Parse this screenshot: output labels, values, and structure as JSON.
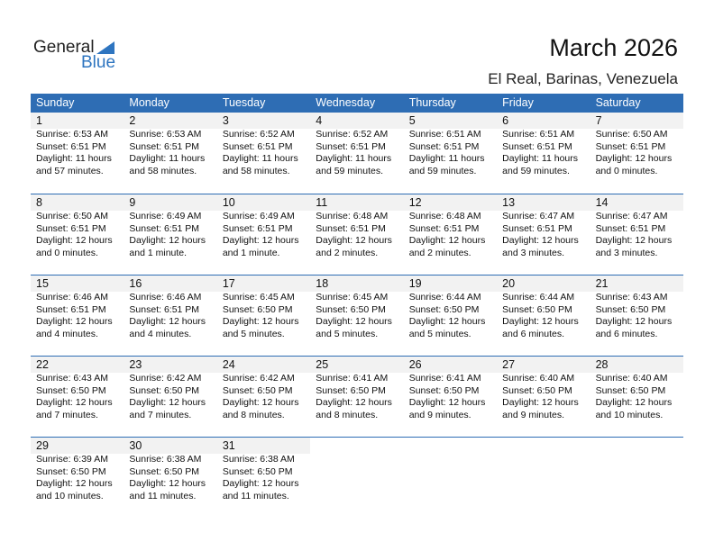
{
  "logo": {
    "line1": "General",
    "line2": "Blue"
  },
  "title": "March 2026",
  "location": "El Real, Barinas, Venezuela",
  "weekdays": [
    "Sunday",
    "Monday",
    "Tuesday",
    "Wednesday",
    "Thursday",
    "Friday",
    "Saturday"
  ],
  "colors": {
    "header": "#2e6db4",
    "date_strip": "#f2f2f2",
    "logo_blue": "#2e75c0"
  },
  "days": [
    {
      "d": "1",
      "sr": "Sunrise: 6:53 AM",
      "ss": "Sunset: 6:51 PM",
      "dl": "Daylight: 11 hours",
      "dm": "and 57 minutes."
    },
    {
      "d": "2",
      "sr": "Sunrise: 6:53 AM",
      "ss": "Sunset: 6:51 PM",
      "dl": "Daylight: 11 hours",
      "dm": "and 58 minutes."
    },
    {
      "d": "3",
      "sr": "Sunrise: 6:52 AM",
      "ss": "Sunset: 6:51 PM",
      "dl": "Daylight: 11 hours",
      "dm": "and 58 minutes."
    },
    {
      "d": "4",
      "sr": "Sunrise: 6:52 AM",
      "ss": "Sunset: 6:51 PM",
      "dl": "Daylight: 11 hours",
      "dm": "and 59 minutes."
    },
    {
      "d": "5",
      "sr": "Sunrise: 6:51 AM",
      "ss": "Sunset: 6:51 PM",
      "dl": "Daylight: 11 hours",
      "dm": "and 59 minutes."
    },
    {
      "d": "6",
      "sr": "Sunrise: 6:51 AM",
      "ss": "Sunset: 6:51 PM",
      "dl": "Daylight: 11 hours",
      "dm": "and 59 minutes."
    },
    {
      "d": "7",
      "sr": "Sunrise: 6:50 AM",
      "ss": "Sunset: 6:51 PM",
      "dl": "Daylight: 12 hours",
      "dm": "and 0 minutes."
    },
    {
      "d": "8",
      "sr": "Sunrise: 6:50 AM",
      "ss": "Sunset: 6:51 PM",
      "dl": "Daylight: 12 hours",
      "dm": "and 0 minutes."
    },
    {
      "d": "9",
      "sr": "Sunrise: 6:49 AM",
      "ss": "Sunset: 6:51 PM",
      "dl": "Daylight: 12 hours",
      "dm": "and 1 minute."
    },
    {
      "d": "10",
      "sr": "Sunrise: 6:49 AM",
      "ss": "Sunset: 6:51 PM",
      "dl": "Daylight: 12 hours",
      "dm": "and 1 minute."
    },
    {
      "d": "11",
      "sr": "Sunrise: 6:48 AM",
      "ss": "Sunset: 6:51 PM",
      "dl": "Daylight: 12 hours",
      "dm": "and 2 minutes."
    },
    {
      "d": "12",
      "sr": "Sunrise: 6:48 AM",
      "ss": "Sunset: 6:51 PM",
      "dl": "Daylight: 12 hours",
      "dm": "and 2 minutes."
    },
    {
      "d": "13",
      "sr": "Sunrise: 6:47 AM",
      "ss": "Sunset: 6:51 PM",
      "dl": "Daylight: 12 hours",
      "dm": "and 3 minutes."
    },
    {
      "d": "14",
      "sr": "Sunrise: 6:47 AM",
      "ss": "Sunset: 6:51 PM",
      "dl": "Daylight: 12 hours",
      "dm": "and 3 minutes."
    },
    {
      "d": "15",
      "sr": "Sunrise: 6:46 AM",
      "ss": "Sunset: 6:51 PM",
      "dl": "Daylight: 12 hours",
      "dm": "and 4 minutes."
    },
    {
      "d": "16",
      "sr": "Sunrise: 6:46 AM",
      "ss": "Sunset: 6:51 PM",
      "dl": "Daylight: 12 hours",
      "dm": "and 4 minutes."
    },
    {
      "d": "17",
      "sr": "Sunrise: 6:45 AM",
      "ss": "Sunset: 6:50 PM",
      "dl": "Daylight: 12 hours",
      "dm": "and 5 minutes."
    },
    {
      "d": "18",
      "sr": "Sunrise: 6:45 AM",
      "ss": "Sunset: 6:50 PM",
      "dl": "Daylight: 12 hours",
      "dm": "and 5 minutes."
    },
    {
      "d": "19",
      "sr": "Sunrise: 6:44 AM",
      "ss": "Sunset: 6:50 PM",
      "dl": "Daylight: 12 hours",
      "dm": "and 5 minutes."
    },
    {
      "d": "20",
      "sr": "Sunrise: 6:44 AM",
      "ss": "Sunset: 6:50 PM",
      "dl": "Daylight: 12 hours",
      "dm": "and 6 minutes."
    },
    {
      "d": "21",
      "sr": "Sunrise: 6:43 AM",
      "ss": "Sunset: 6:50 PM",
      "dl": "Daylight: 12 hours",
      "dm": "and 6 minutes."
    },
    {
      "d": "22",
      "sr": "Sunrise: 6:43 AM",
      "ss": "Sunset: 6:50 PM",
      "dl": "Daylight: 12 hours",
      "dm": "and 7 minutes."
    },
    {
      "d": "23",
      "sr": "Sunrise: 6:42 AM",
      "ss": "Sunset: 6:50 PM",
      "dl": "Daylight: 12 hours",
      "dm": "and 7 minutes."
    },
    {
      "d": "24",
      "sr": "Sunrise: 6:42 AM",
      "ss": "Sunset: 6:50 PM",
      "dl": "Daylight: 12 hours",
      "dm": "and 8 minutes."
    },
    {
      "d": "25",
      "sr": "Sunrise: 6:41 AM",
      "ss": "Sunset: 6:50 PM",
      "dl": "Daylight: 12 hours",
      "dm": "and 8 minutes."
    },
    {
      "d": "26",
      "sr": "Sunrise: 6:41 AM",
      "ss": "Sunset: 6:50 PM",
      "dl": "Daylight: 12 hours",
      "dm": "and 9 minutes."
    },
    {
      "d": "27",
      "sr": "Sunrise: 6:40 AM",
      "ss": "Sunset: 6:50 PM",
      "dl": "Daylight: 12 hours",
      "dm": "and 9 minutes."
    },
    {
      "d": "28",
      "sr": "Sunrise: 6:40 AM",
      "ss": "Sunset: 6:50 PM",
      "dl": "Daylight: 12 hours",
      "dm": "and 10 minutes."
    },
    {
      "d": "29",
      "sr": "Sunrise: 6:39 AM",
      "ss": "Sunset: 6:50 PM",
      "dl": "Daylight: 12 hours",
      "dm": "and 10 minutes."
    },
    {
      "d": "30",
      "sr": "Sunrise: 6:38 AM",
      "ss": "Sunset: 6:50 PM",
      "dl": "Daylight: 12 hours",
      "dm": "and 11 minutes."
    },
    {
      "d": "31",
      "sr": "Sunrise: 6:38 AM",
      "ss": "Sunset: 6:50 PM",
      "dl": "Daylight: 12 hours",
      "dm": "and 11 minutes."
    }
  ]
}
